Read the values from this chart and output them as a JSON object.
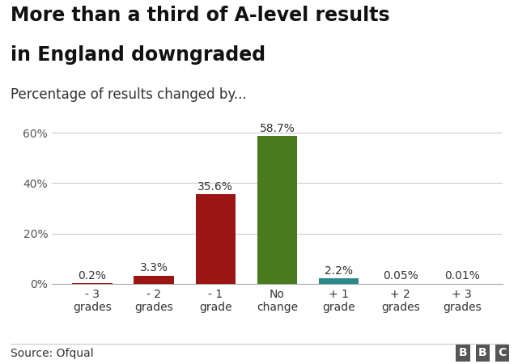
{
  "title_line1": "More than a third of A-level results",
  "title_line2": "in England downgraded",
  "subtitle": "Percentage of results changed by...",
  "categories": [
    "- 3\ngrades",
    "- 2\ngrades",
    "- 1\ngrade",
    "No\nchange",
    "+ 1\ngrade",
    "+ 2\ngrades",
    "+ 3\ngrades"
  ],
  "values": [
    0.2,
    3.3,
    35.6,
    58.7,
    2.2,
    0.05,
    0.01
  ],
  "labels": [
    "0.2%",
    "3.3%",
    "35.6%",
    "58.7%",
    "2.2%",
    "0.05%",
    "0.01%"
  ],
  "colors": [
    "#9b1515",
    "#9b1515",
    "#9b1515",
    "#4a7a1e",
    "#2a8a8a",
    "#c8c8c8",
    "#c8c8c8"
  ],
  "ylim": [
    0,
    65
  ],
  "yticks": [
    0,
    20,
    40,
    60
  ],
  "ytick_labels": [
    "0%",
    "20%",
    "40%",
    "60%"
  ],
  "source": "Source: Ofqual",
  "background_color": "#ffffff",
  "grid_color": "#cccccc",
  "title_fontsize": 17,
  "subtitle_fontsize": 12,
  "label_fontsize": 10,
  "tick_fontsize": 10,
  "source_fontsize": 10
}
